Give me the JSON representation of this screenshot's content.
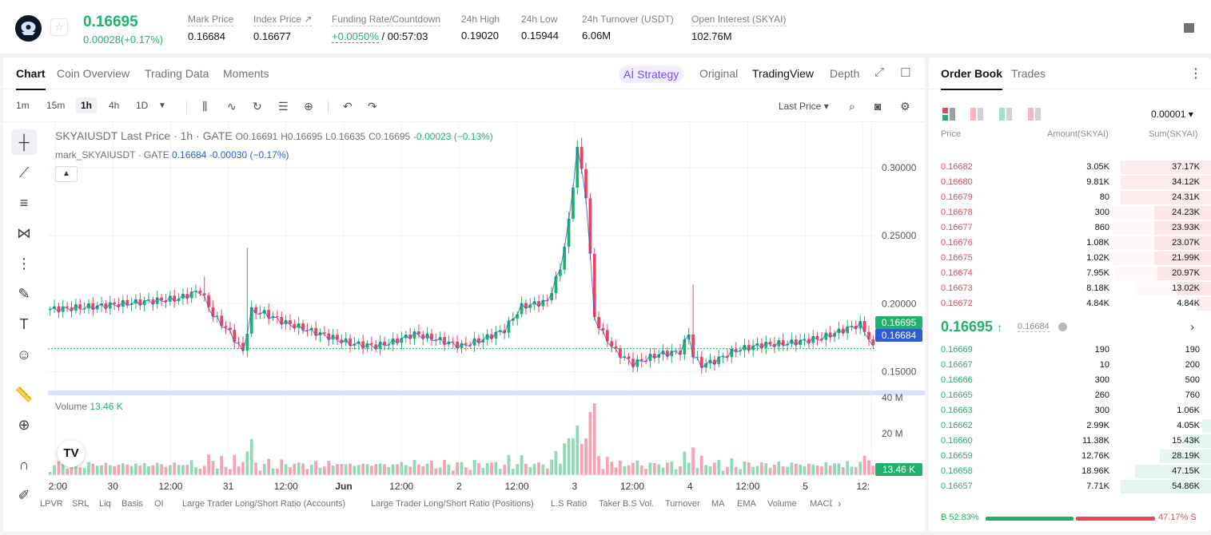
{
  "header": {
    "price": "0.16695",
    "change": "0.00028(+0.17%)",
    "stats": [
      {
        "label": "Mark Price",
        "value": "0.16684"
      },
      {
        "label": "Index Price ↗",
        "value": "0.16677"
      },
      {
        "label": "Funding Rate/Countdown",
        "value_green": "+0.0050%",
        "value": "/ 00:57:03"
      },
      {
        "label": "24h High",
        "value": "0.19020"
      },
      {
        "label": "24h Low",
        "value": "0.15944"
      },
      {
        "label": "24h Turnover (USDT)",
        "value": "6.06M"
      },
      {
        "label": "Open Interest (SKYAI)",
        "value": "102.76M"
      }
    ]
  },
  "chart_tabs": [
    "Chart",
    "Coin Overview",
    "Trading Data",
    "Moments"
  ],
  "chart_view": {
    "strategy": "Aİ Strategy",
    "original": "Original",
    "tradingview": "TradingView",
    "depth": "Depth"
  },
  "toolbar": {
    "timeframes": [
      "1m",
      "15m",
      "1h",
      "4h",
      "1D"
    ],
    "active_timeframe": "1h",
    "last_price": "Last Price"
  },
  "chart_legend": {
    "title": "SKYAIUSDT Last Price · 1h · GATE",
    "o": "O0.16691",
    "h": "H0.16695",
    "l": "L0.16635",
    "c": "C0.16695",
    "chg": "-0.00023 (−0.13%)",
    "mark": "mark_SKYAIUSDT · GATE",
    "mark_val": "0.16684 -0.00030 (−0.17%)",
    "volume_label": "Volume",
    "volume_val": "13.46 K"
  },
  "price_tags": {
    "last": "0.16695",
    "mark": "0.16684",
    "volume": "13.46 K"
  },
  "y_axis": [
    "0.30000",
    "0.25000",
    "0.20000",
    "0.15000"
  ],
  "vol_axis": [
    "40 M",
    "20 M"
  ],
  "x_axis": [
    "12:00",
    "30",
    "12:00",
    "31",
    "12:00",
    "Jun",
    "12:00",
    "2",
    "12:00",
    "3",
    "12:00",
    "4",
    "12:00",
    "5",
    "12:"
  ],
  "chart_data": {
    "type": "candlestick",
    "symbol": "SKYAIUSDT",
    "interval": "1h",
    "ylim": [
      0.135,
      0.32
    ],
    "close_path": [
      [
        0,
        0.196
      ],
      [
        10,
        0.198
      ],
      [
        20,
        0.201
      ],
      [
        30,
        0.204
      ],
      [
        35,
        0.21
      ],
      [
        38,
        0.192
      ],
      [
        42,
        0.179
      ],
      [
        45,
        0.165
      ],
      [
        47,
        0.195
      ],
      [
        50,
        0.193
      ],
      [
        55,
        0.186
      ],
      [
        60,
        0.181
      ],
      [
        65,
        0.176
      ],
      [
        70,
        0.171
      ],
      [
        76,
        0.169
      ],
      [
        80,
        0.172
      ],
      [
        85,
        0.178
      ],
      [
        90,
        0.174
      ],
      [
        96,
        0.169
      ],
      [
        101,
        0.174
      ],
      [
        106,
        0.181
      ],
      [
        110,
        0.198
      ],
      [
        116,
        0.202
      ],
      [
        119,
        0.226
      ],
      [
        121,
        0.26
      ],
      [
        123,
        0.315
      ],
      [
        125,
        0.28
      ],
      [
        127,
        0.19
      ],
      [
        129,
        0.178
      ],
      [
        132,
        0.165
      ],
      [
        136,
        0.156
      ],
      [
        142,
        0.163
      ],
      [
        147,
        0.165
      ],
      [
        149,
        0.178
      ],
      [
        150,
        0.162
      ],
      [
        152,
        0.155
      ],
      [
        155,
        0.158
      ],
      [
        160,
        0.166
      ],
      [
        166,
        0.17
      ],
      [
        172,
        0.171
      ],
      [
        180,
        0.175
      ],
      [
        186,
        0.182
      ],
      [
        189,
        0.185
      ],
      [
        191,
        0.175
      ],
      [
        192,
        0.167
      ]
    ],
    "spikes": [
      {
        "i": 46,
        "high": 0.241
      },
      {
        "i": 150,
        "high": 0.2145
      },
      {
        "i": 124,
        "high": 0.322
      },
      {
        "i": 36,
        "high": 0.22
      }
    ],
    "volume_max": 45,
    "volume_unit": "M"
  },
  "drawing_tools": [
    "crosshair-icon",
    "trend-line-icon",
    "horizontal-lines-icon",
    "pattern-icon",
    "fib-icon",
    "brush-icon",
    "text-icon",
    "emoji-icon",
    "ruler-icon",
    "zoom-in-icon",
    "magnet-icon",
    "pencil-lock-icon"
  ],
  "indicators": [
    "LPVR",
    "SRL",
    "Liq",
    "Basis",
    "OI",
    "Large Trader Long/Short Ratio (Accounts)",
    "Large Trader Long/Short Ratio (Positions)",
    "L.S Ratio",
    "Taker B.S Vol.",
    "Turnover",
    "MA",
    "EMA",
    "Volume",
    "MACD"
  ],
  "order_book": {
    "tabs": [
      "Order Book",
      "Trades"
    ],
    "precision": "0.00001",
    "columns": [
      "Price",
      "Amount(SKYAI)",
      "Sum(SKYAI)"
    ],
    "asks": [
      {
        "price": "0.16682",
        "amount": "3.05K",
        "sum": "37.17K",
        "depth": 0.32,
        "amt_depth": 0.0
      },
      {
        "price": "0.16680",
        "amount": "9.81K",
        "sum": "34.12K",
        "depth": 0.32,
        "amt_depth": 0.0
      },
      {
        "price": "0.16679",
        "amount": "80",
        "sum": "24.31K",
        "depth": 0.32,
        "amt_depth": 0.0
      },
      {
        "price": "0.16678",
        "amount": "300",
        "sum": "24.23K",
        "depth": 0.2,
        "amt_depth": 0.15
      },
      {
        "price": "0.16677",
        "amount": "860",
        "sum": "23.93K",
        "depth": 0.2,
        "amt_depth": 0.15
      },
      {
        "price": "0.16676",
        "amount": "1.08K",
        "sum": "23.07K",
        "depth": 0.2,
        "amt_depth": 0.15
      },
      {
        "price": "0.16675",
        "amount": "1.02K",
        "sum": "21.99K",
        "depth": 0.2,
        "amt_depth": 0.15
      },
      {
        "price": "0.16674",
        "amount": "7.95K",
        "sum": "20.97K",
        "depth": 0.19,
        "amt_depth": 0.15
      },
      {
        "price": "0.16673",
        "amount": "8.18K",
        "sum": "13.02K",
        "depth": 0.12,
        "amt_depth": 0.15
      },
      {
        "price": "0.16672",
        "amount": "4.84K",
        "sum": "4.84K",
        "depth": 0.05,
        "amt_depth": 0.0
      }
    ],
    "last_price": "0.16695",
    "mark_price": "0.16684",
    "bids": [
      {
        "price": "0.16669",
        "amount": "190",
        "sum": "190",
        "depth": 0.0
      },
      {
        "price": "0.16667",
        "amount": "10",
        "sum": "200",
        "depth": 0.0
      },
      {
        "price": "0.16666",
        "amount": "300",
        "sum": "500",
        "depth": 0.0
      },
      {
        "price": "0.16665",
        "amount": "260",
        "sum": "760",
        "depth": 0.0
      },
      {
        "price": "0.16663",
        "amount": "300",
        "sum": "1.06K",
        "depth": 0.0
      },
      {
        "price": "0.16662",
        "amount": "2.99K",
        "sum": "4.05K",
        "depth": 0.03
      },
      {
        "price": "0.16660",
        "amount": "11.38K",
        "sum": "15.43K",
        "depth": 0.1
      },
      {
        "price": "0.16659",
        "amount": "12.76K",
        "sum": "28.19K",
        "depth": 0.18
      },
      {
        "price": "0.16658",
        "amount": "18.96K",
        "sum": "47.15K",
        "depth": 0.27
      },
      {
        "price": "0.16657",
        "amount": "7.71K",
        "sum": "54.86K",
        "depth": 0.32
      }
    ],
    "buy_ratio": "B 52.83%",
    "sell_ratio": "47.17% S"
  },
  "colors": {
    "up": "#20b26c",
    "down": "#f0415d",
    "mark": "#2f5bd8"
  }
}
